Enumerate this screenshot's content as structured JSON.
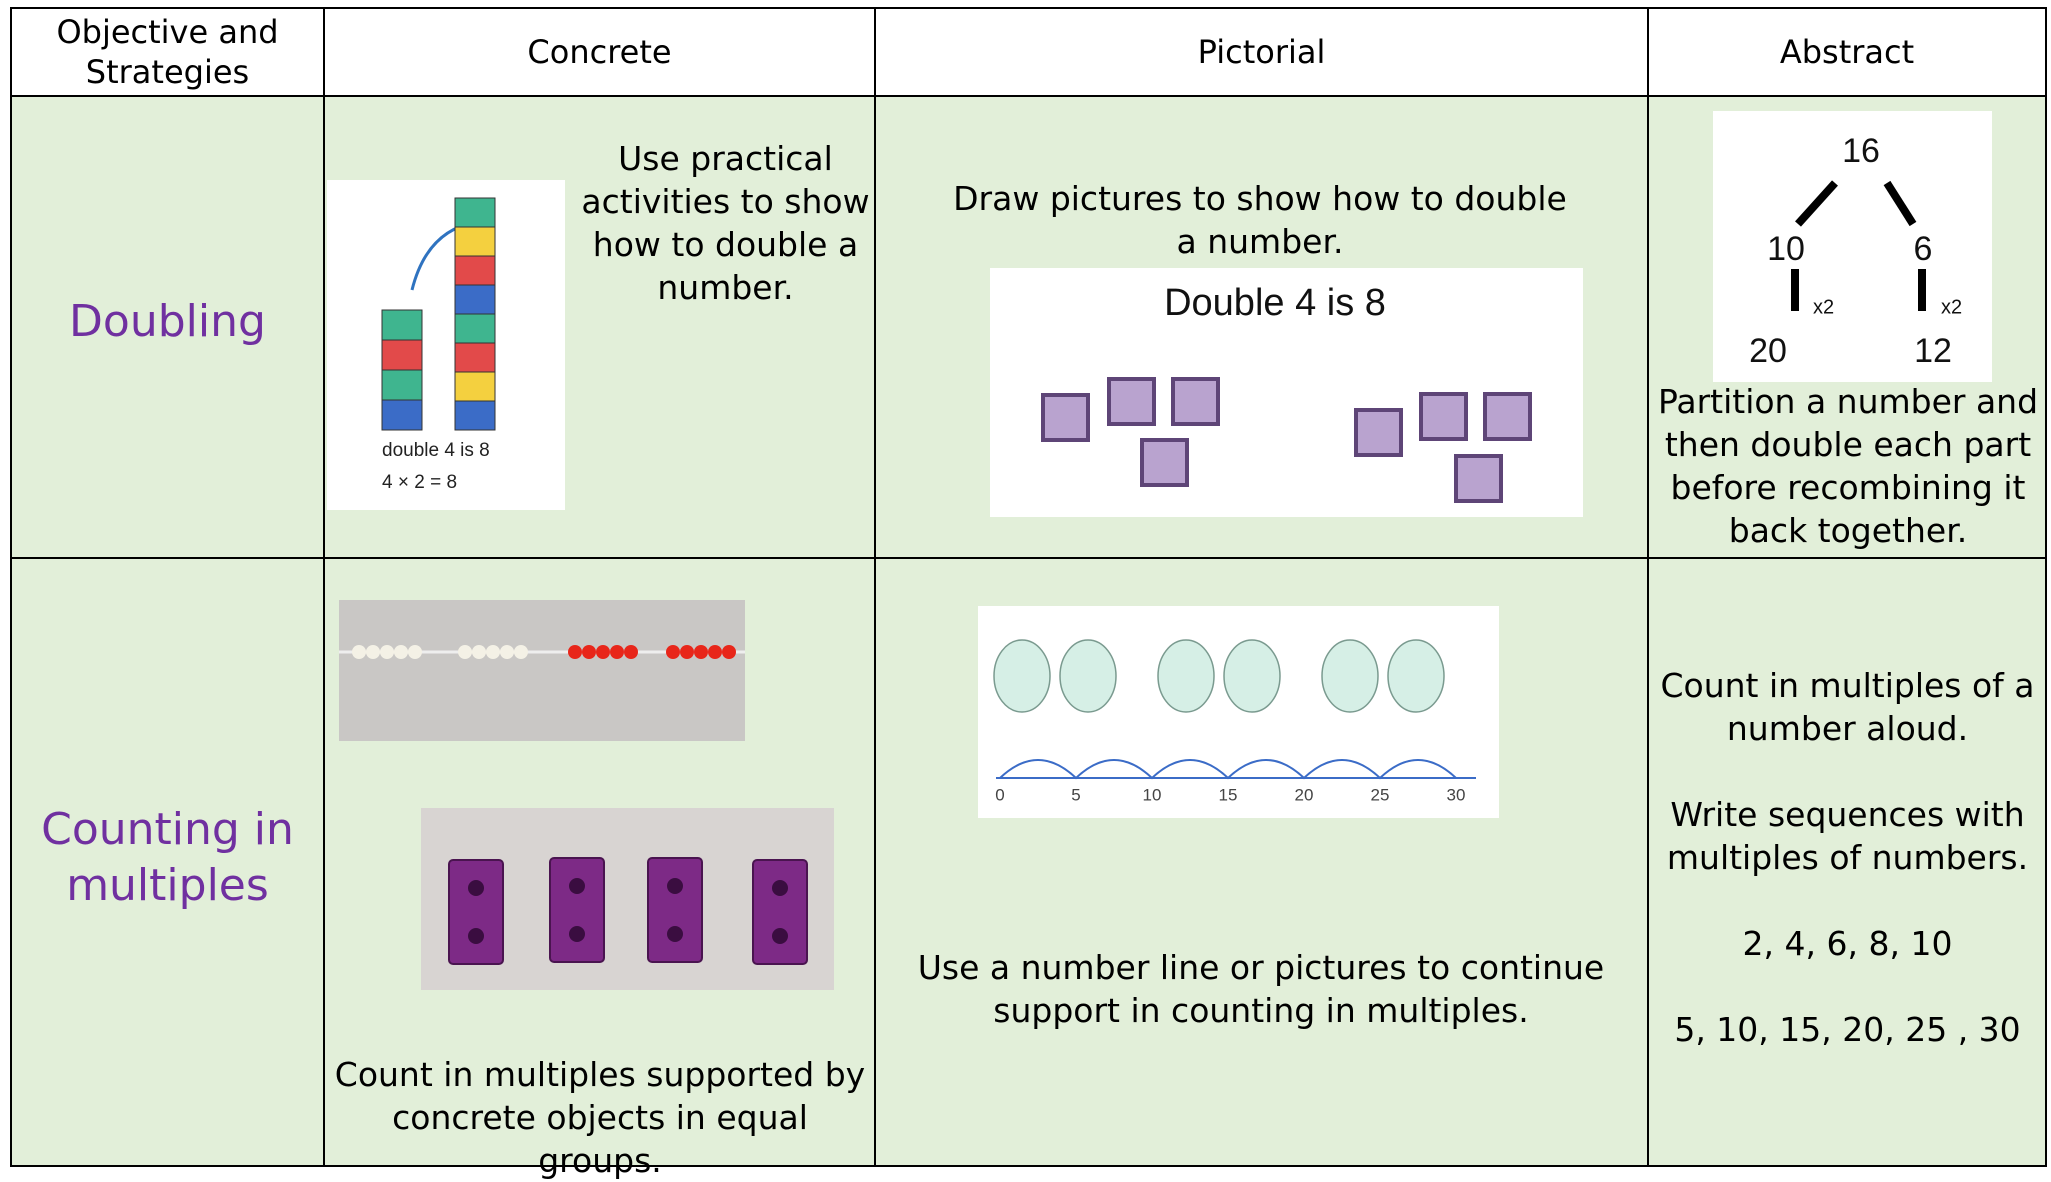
{
  "table": {
    "header": [
      "Objective and Strategies",
      "Concrete",
      "Pictorial",
      "Abstract"
    ],
    "rows": [
      {
        "objective": "Doubling",
        "concrete": "Use practical activities to show how to double a number.",
        "concrete_image": {
          "caption": [
            "double 4 is 8",
            "4 × 2 = 8"
          ]
        },
        "pictorial": "Draw pictures to show how to double a number.",
        "pictorial_image": {
          "title": "Double 4 is 8"
        },
        "abstract_image": {
          "whole": "16",
          "parts": [
            "10",
            "6"
          ],
          "operators": [
            "x2",
            "x2"
          ],
          "doubles": [
            "20",
            "12"
          ]
        },
        "abstract": "Partition a number and then double each part before recombining it back together."
      },
      {
        "objective": "Counting in multiples",
        "concrete": "Count in multiples supported by concrete objects in equal groups.",
        "pictorial_image": {
          "number_line": [
            "0",
            "5",
            "10",
            "15",
            "20",
            "25",
            "30"
          ]
        },
        "pictorial": "Use a number line or pictures to continue support in counting in multiples.",
        "abstract": [
          "Count in multiples of a number aloud.",
          "Write sequences with multiples of numbers.",
          "2, 4, 6, 8, 10",
          "5, 10, 15, 20, 25 , 30"
        ]
      }
    ]
  }
}
